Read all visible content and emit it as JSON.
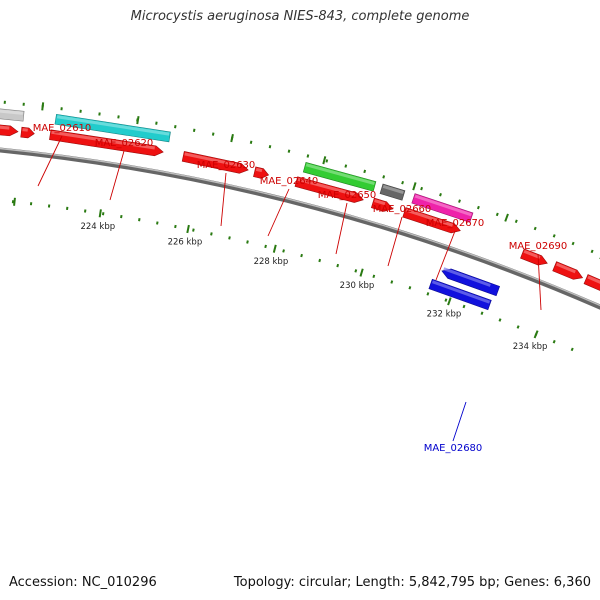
{
  "title": "Microcystis aeruginosa NIES-843, complete genome",
  "footer": {
    "accession": "Accession: NC_010296",
    "summary": "Topology: circular; Length: 5,842,795 bp; Genes: 6,360"
  },
  "colors": {
    "backbone": "#7f7f7f",
    "tick": "#2a7a12",
    "label_plus": "#cc0000",
    "label_minus": "#0000cc",
    "axis_text": "#222222"
  },
  "axis_labels": [
    "224 kbp",
    "226 kbp",
    "228 kbp",
    "230 kbp",
    "232 kbp",
    "234 kbp"
  ],
  "genes": [
    {
      "label": "MAE_02610",
      "color": "#cc0000"
    },
    {
      "label": "MAE_02620",
      "color": "#cc0000"
    },
    {
      "label": "MAE_02630",
      "color": "#cc0000"
    },
    {
      "label": "MAE_02640",
      "color": "#cc0000"
    },
    {
      "label": "MAE_02650",
      "color": "#cc0000"
    },
    {
      "label": "MAE_02660",
      "color": "#cc0000"
    },
    {
      "label": "MAE_02670",
      "color": "#cc0000"
    },
    {
      "label": "MAE_02680",
      "color": "#0000cc"
    },
    {
      "label": "MAE_02690",
      "color": "#cc0000"
    }
  ],
  "feature_colors": {
    "cds": "#ee1111",
    "cds_minus": "#1111dd",
    "grey": "#c8c8c8",
    "cyan": "#22cccc",
    "green": "#33cc33",
    "dark": "#666666",
    "magenta": "#ee22aa",
    "blue": "#1111dd"
  }
}
